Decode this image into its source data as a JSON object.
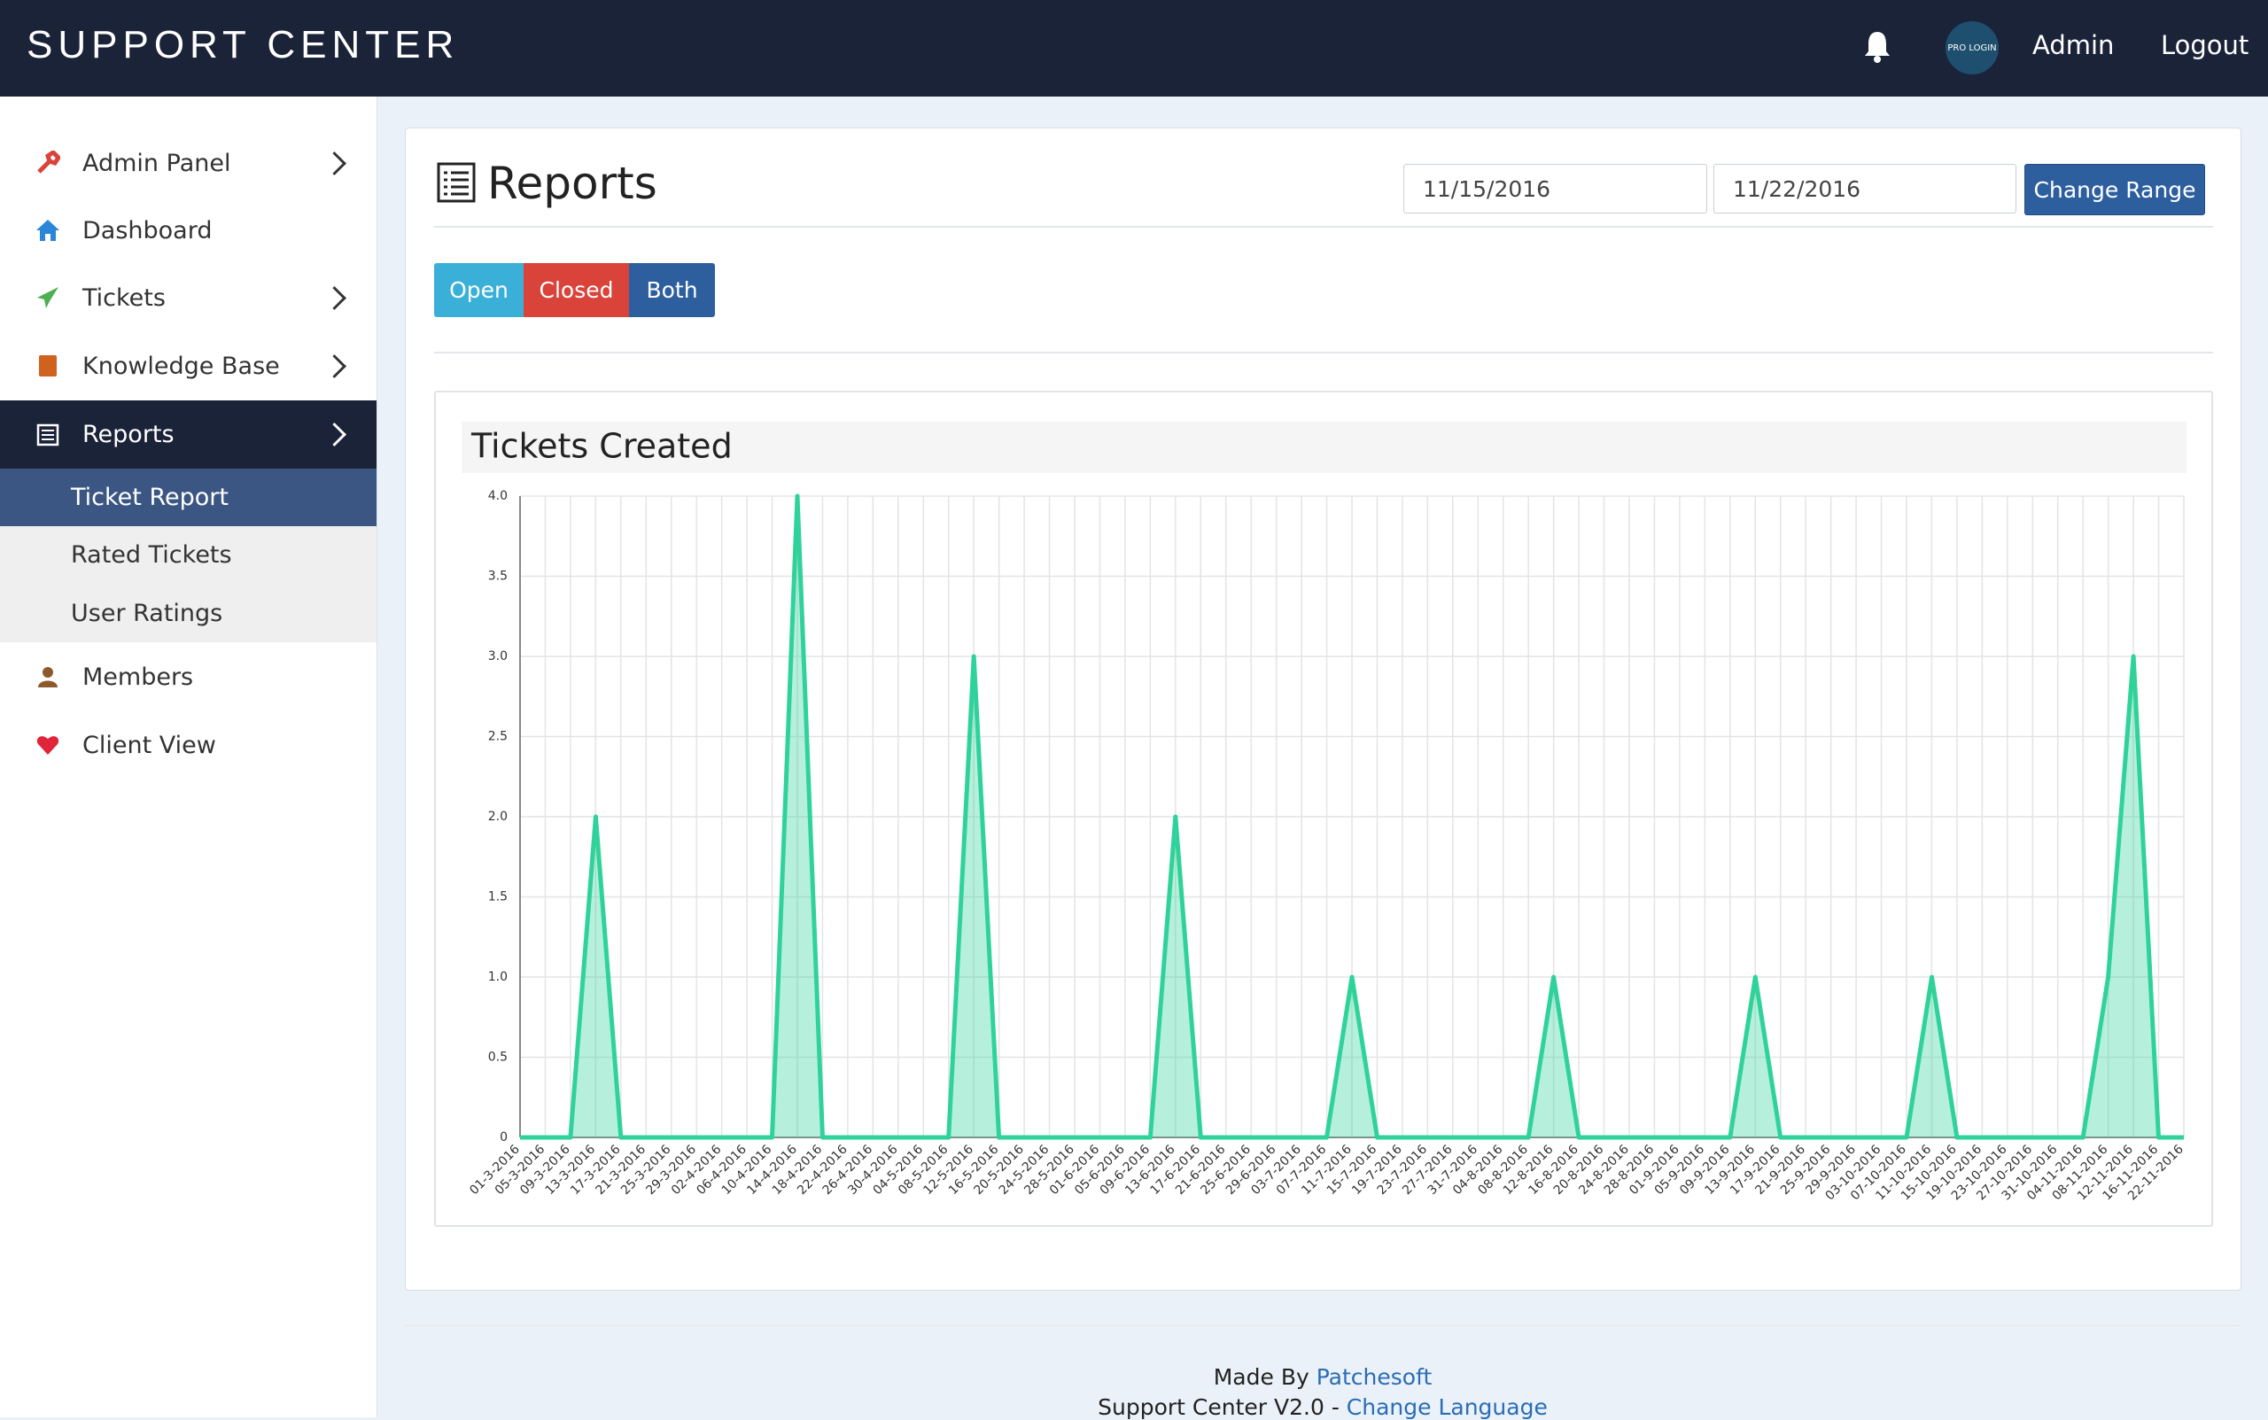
{
  "header": {
    "brand": "SUPPORT CENTER",
    "badge": "PRO LOGIN",
    "user": "Admin",
    "logout": "Logout"
  },
  "sidebar": {
    "items": [
      "Admin Panel",
      "Dashboard",
      "Tickets",
      "Knowledge Base",
      "Reports",
      "Members",
      "Client View"
    ],
    "subitems": [
      "Ticket Report",
      "Rated Tickets",
      "User Ratings"
    ]
  },
  "content": {
    "title": "Reports",
    "date_from": "11/15/2016",
    "date_to": "11/22/2016",
    "change_range": "Change Range",
    "filters": [
      "Open",
      "Closed",
      "Both"
    ]
  },
  "chart_data": {
    "type": "line",
    "title": "Tickets Created",
    "categories": [
      "01-3-2016",
      "05-3-2016",
      "09-3-2016",
      "13-3-2016",
      "17-3-2016",
      "21-3-2016",
      "25-3-2016",
      "29-3-2016",
      "02-4-2016",
      "06-4-2016",
      "10-4-2016",
      "14-4-2016",
      "18-4-2016",
      "22-4-2016",
      "26-4-2016",
      "30-4-2016",
      "04-5-2016",
      "08-5-2016",
      "12-5-2016",
      "16-5-2016",
      "20-5-2016",
      "24-5-2016",
      "28-5-2016",
      "01-6-2016",
      "05-6-2016",
      "09-6-2016",
      "13-6-2016",
      "17-6-2016",
      "21-6-2016",
      "25-6-2016",
      "29-6-2016",
      "03-7-2016",
      "07-7-2016",
      "11-7-2016",
      "15-7-2016",
      "19-7-2016",
      "23-7-2016",
      "27-7-2016",
      "31-7-2016",
      "04-8-2016",
      "08-8-2016",
      "12-8-2016",
      "16-8-2016",
      "20-8-2016",
      "24-8-2016",
      "28-8-2016",
      "01-9-2016",
      "05-9-2016",
      "09-9-2016",
      "13-9-2016",
      "17-9-2016",
      "21-9-2016",
      "25-9-2016",
      "29-9-2016",
      "03-10-2016",
      "07-10-2016",
      "11-10-2016",
      "15-10-2016",
      "19-10-2016",
      "23-10-2016",
      "27-10-2016",
      "31-10-2016",
      "04-11-2016",
      "08-11-2016",
      "12-11-2016",
      "16-11-2016",
      "22-11-2016"
    ],
    "values": [
      0,
      0,
      0,
      2,
      0,
      0,
      0,
      0,
      0,
      0,
      0,
      4,
      0,
      0,
      0,
      0,
      0,
      0,
      3,
      0,
      0,
      0,
      0,
      0,
      0,
      0,
      2,
      0,
      0,
      0,
      0,
      0,
      0,
      1,
      0,
      0,
      0,
      0,
      0,
      0,
      0,
      1,
      0,
      0,
      0,
      0,
      0,
      0,
      0,
      1,
      0,
      0,
      0,
      0,
      0,
      0,
      1,
      0,
      0,
      0,
      0,
      0,
      0,
      1,
      3,
      0,
      0
    ],
    "color": "#2fd39a",
    "ylim": [
      0,
      4
    ],
    "yticks": [
      0,
      {
        "value": 0.5,
        "label": "0.5"
      },
      {
        "value": 1,
        "label": "1.0"
      },
      {
        "value": 1.5,
        "label": "1.5"
      },
      {
        "value": 2,
        "label": "2.0"
      },
      {
        "value": 2.5,
        "label": "2.5"
      },
      {
        "value": 3,
        "label": "3.0"
      },
      {
        "value": 3.5,
        "label": "3.5"
      },
      {
        "value": 4,
        "label": "4.0"
      }
    ],
    "grid": true
  },
  "footer": {
    "made_by": "Made By",
    "author": "Patchesoft",
    "version": "Support Center V2.0 -",
    "language": "Change Language"
  }
}
